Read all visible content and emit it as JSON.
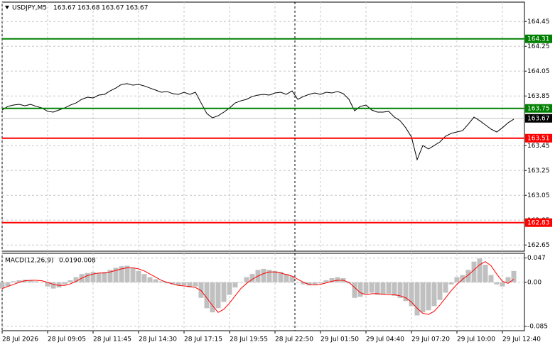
{
  "chart_data": [
    {
      "type": "line",
      "symbol": "USDJPY,M5",
      "ohlc": [
        163.67,
        163.68,
        163.67,
        163.67
      ],
      "series": [
        {
          "color": "#000000",
          "values": [
            163.737,
            163.766,
            163.777,
            163.783,
            163.771,
            163.783,
            163.766,
            163.754,
            163.726,
            163.72,
            163.737,
            163.754,
            163.777,
            163.794,
            163.823,
            163.84,
            163.834,
            163.857,
            163.863,
            163.891,
            163.914,
            163.943,
            163.949,
            163.937,
            163.943,
            163.931,
            163.914,
            163.897,
            163.88,
            163.886,
            163.869,
            163.863,
            163.88,
            163.863,
            163.88,
            163.794,
            163.709,
            163.674,
            163.691,
            163.72,
            163.754,
            163.794,
            163.811,
            163.823,
            163.846,
            163.857,
            163.863,
            163.857,
            163.874,
            163.88,
            163.863,
            163.891,
            163.823,
            163.846,
            163.863,
            163.874,
            163.863,
            163.88,
            163.874,
            163.886,
            163.869,
            163.823,
            163.731,
            163.766,
            163.777,
            163.737,
            163.72,
            163.72,
            163.726,
            163.68,
            163.651,
            163.594,
            163.52,
            163.337,
            163.451,
            163.423,
            163.451,
            163.48,
            163.526,
            163.549,
            163.56,
            163.571,
            163.623,
            163.68,
            163.651,
            163.617,
            163.583,
            163.56,
            163.594,
            163.634,
            163.663
          ]
        }
      ],
      "levels": [
        {
          "value": 164.31,
          "color": "#008000"
        },
        {
          "value": 163.75,
          "color": "#008000"
        },
        {
          "value": 163.51,
          "color": "#ff0000"
        },
        {
          "value": 162.83,
          "color": "#ff0000"
        }
      ],
      "current_price": 163.67,
      "ylim": [
        162.6,
        164.6
      ],
      "yticks": [
        164.45,
        164.25,
        164.05,
        163.85,
        163.45,
        163.25,
        163.05,
        162.85,
        162.65
      ],
      "grid": true
    },
    {
      "type": "macd",
      "title": "MACD(12,26,9)",
      "readouts": [
        0.019,
        0.008
      ],
      "categories": [
        "28 Jul 2026",
        null,
        null,
        null,
        null,
        null,
        null,
        null,
        "28 Jul 09:05",
        null,
        null,
        null,
        null,
        null,
        null,
        null,
        "28 Jul 11:45",
        null,
        null,
        null,
        null,
        null,
        null,
        null,
        "28 Jul 14:30",
        null,
        null,
        null,
        null,
        null,
        null,
        null,
        "28 Jul 17:15",
        null,
        null,
        null,
        null,
        null,
        null,
        null,
        "28 Jul 19:55",
        null,
        null,
        null,
        null,
        null,
        null,
        null,
        "28 Jul 22:50",
        null,
        null,
        null,
        null,
        null,
        null,
        null,
        "29 Jul 01:50",
        null,
        null,
        null,
        null,
        null,
        null,
        null,
        "29 Jul 04:40",
        null,
        null,
        null,
        null,
        null,
        null,
        null,
        "29 Jul 07:20",
        null,
        null,
        null,
        null,
        null,
        null,
        null,
        "29 Jul 10:00",
        null,
        null,
        null,
        null,
        null,
        null,
        null,
        "29 Jul 12:40",
        null,
        null
      ],
      "series": [
        {
          "style": "histogram",
          "color": "#c0c0c0",
          "values": [
            -0.012,
            -0.008,
            0.002,
            0.004,
            0.005,
            0.004,
            0.002,
            0.0,
            -0.008,
            -0.012,
            -0.01,
            -0.004,
            0.004,
            0.01,
            0.016,
            0.018,
            0.02,
            0.018,
            0.02,
            0.024,
            0.028,
            0.031,
            0.032,
            0.028,
            0.022,
            0.016,
            0.01,
            0.006,
            0.002,
            -0.002,
            -0.004,
            -0.006,
            -0.006,
            -0.01,
            -0.008,
            -0.03,
            -0.05,
            -0.058,
            -0.05,
            -0.038,
            -0.024,
            -0.01,
            0.0,
            0.01,
            0.016,
            0.024,
            0.026,
            0.024,
            0.022,
            0.02,
            0.016,
            0.012,
            0.0,
            -0.004,
            -0.006,
            -0.004,
            -0.002,
            0.004,
            0.008,
            0.01,
            0.008,
            -0.002,
            -0.03,
            -0.028,
            -0.022,
            -0.02,
            -0.024,
            -0.024,
            -0.022,
            -0.026,
            -0.03,
            -0.036,
            -0.046,
            -0.064,
            -0.058,
            -0.054,
            -0.046,
            -0.034,
            -0.02,
            -0.004,
            0.01,
            0.014,
            0.024,
            0.04,
            0.046,
            0.034,
            0.014,
            -0.004,
            -0.008,
            0.01,
            0.022
          ]
        },
        {
          "style": "line",
          "color": "#ff0000",
          "values": [
            -0.012,
            -0.008,
            -0.004,
            0.0,
            0.003,
            0.004,
            0.004,
            0.003,
            0.0,
            -0.004,
            -0.006,
            -0.006,
            -0.003,
            0.002,
            0.008,
            0.013,
            0.016,
            0.018,
            0.018,
            0.02,
            0.023,
            0.026,
            0.028,
            0.028,
            0.026,
            0.022,
            0.016,
            0.01,
            0.004,
            0.0,
            -0.003,
            -0.006,
            -0.007,
            -0.008,
            -0.01,
            -0.016,
            -0.03,
            -0.045,
            -0.058,
            -0.052,
            -0.04,
            -0.026,
            -0.012,
            -0.002,
            0.006,
            0.012,
            0.017,
            0.02,
            0.02,
            0.018,
            0.015,
            0.012,
            0.006,
            0.0,
            -0.004,
            -0.005,
            -0.004,
            -0.001,
            0.002,
            0.004,
            0.004,
            0.0,
            -0.01,
            -0.02,
            -0.024,
            -0.022,
            -0.022,
            -0.023,
            -0.024,
            -0.024,
            -0.026,
            -0.03,
            -0.038,
            -0.05,
            -0.06,
            -0.062,
            -0.056,
            -0.044,
            -0.03,
            -0.016,
            -0.004,
            0.006,
            0.014,
            0.024,
            0.034,
            0.04,
            0.032,
            0.016,
            0.002,
            -0.002,
            0.006
          ]
        }
      ],
      "ylim": [
        -0.092,
        0.056
      ],
      "yticks": [
        0.047,
        {
          "value": 0,
          "label": "0.00"
        },
        -0.085
      ],
      "grid": true
    }
  ]
}
